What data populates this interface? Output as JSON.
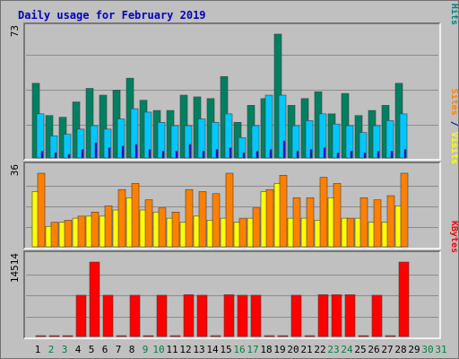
{
  "chart_data": {
    "type": "bar",
    "title": "Daily usage for February 2019",
    "x": [
      "1",
      "2",
      "3",
      "4",
      "5",
      "6",
      "7",
      "8",
      "9",
      "10",
      "11",
      "12",
      "13",
      "14",
      "15",
      "16",
      "17",
      "18",
      "19",
      "20",
      "21",
      "22",
      "23",
      "24",
      "25",
      "26",
      "27",
      "28",
      "29",
      "30",
      "31"
    ],
    "weekend_days": [
      "2",
      "3",
      "9",
      "10",
      "16",
      "17",
      "23",
      "24",
      "30",
      "31"
    ],
    "panels": [
      {
        "max_label": "73",
        "ymax": 73,
        "side_label": [
          {
            "text": "Pages",
            "color": "#00c0c0"
          },
          {
            "text": " / ",
            "color": "#000080"
          },
          {
            "text": "Files",
            "color": "#0000ff"
          },
          {
            "text": " / ",
            "color": "#000080"
          },
          {
            "text": "Hits",
            "color": "#008080"
          }
        ],
        "series": [
          {
            "name": "Hits",
            "color": "#008060",
            "values": [
              44,
              25,
              24,
              33,
              41,
              37,
              40,
              47,
              34,
              28,
              28,
              37,
              36,
              35,
              48,
              21,
              31,
              35,
              73,
              31,
              35,
              39,
              26,
              38,
              25,
              28,
              31,
              44,
              null,
              null,
              null
            ]
          },
          {
            "name": "Files",
            "color": "#00c8ff",
            "values": [
              26,
              13,
              14,
              17,
              19,
              17,
              23,
              29,
              27,
              21,
              19,
              19,
              23,
              21,
              26,
              12,
              19,
              37,
              37,
              19,
              22,
              26,
              20,
              19,
              15,
              19,
              22,
              26,
              null,
              null,
              null
            ]
          },
          {
            "name": "Pages",
            "color": "#0000ff",
            "values": [
              4,
              3,
              2,
              5,
              9,
              6,
              7,
              8,
              5,
              4,
              4,
              8,
              4,
              5,
              6,
              3,
              4,
              5,
              10,
              4,
              5,
              6,
              3,
              4,
              3,
              4,
              4,
              5,
              null,
              null,
              null
            ]
          }
        ]
      },
      {
        "max_label": "36",
        "ymax": 36,
        "side_label": [
          {
            "text": "Sites",
            "color": "#ff8000"
          },
          {
            "text": " / ",
            "color": "#000080"
          },
          {
            "text": "Visits",
            "color": "#ffff00"
          }
        ],
        "series": [
          {
            "name": "Visits",
            "color": "#ffff00",
            "values": [
              27,
              10,
              12,
              14,
              15,
              15,
              18,
              24,
              18,
              17,
              14,
              12,
              15,
              13,
              14,
              12,
              14,
              27,
              31,
              14,
              14,
              13,
              24,
              14,
              14,
              12,
              12,
              20,
              null,
              null,
              null
            ]
          },
          {
            "name": "Sites",
            "color": "#ff8000",
            "values": [
              36,
              12,
              13,
              15,
              17,
              20,
              28,
              31,
              23,
              19,
              17,
              28,
              27,
              26,
              36,
              14,
              19,
              28,
              35,
              24,
              24,
              34,
              31,
              14,
              24,
              23,
              25,
              36,
              null,
              null,
              null
            ]
          }
        ]
      },
      {
        "max_label": "14514",
        "ymax": 14514,
        "side_label": [
          {
            "text": "KBytes",
            "color": "#ff0000"
          }
        ],
        "series": [
          {
            "name": "KBytes",
            "color": "#ff0000",
            "values": [
              150,
              150,
              150,
              8050,
              14514,
              8050,
              150,
              8050,
              150,
              8050,
              150,
              8150,
              8050,
              150,
              8150,
              8050,
              8050,
              150,
              150,
              8050,
              150,
              8150,
              8150,
              8150,
              150,
              8050,
              150,
              14514,
              null,
              null,
              null
            ]
          }
        ]
      }
    ]
  }
}
